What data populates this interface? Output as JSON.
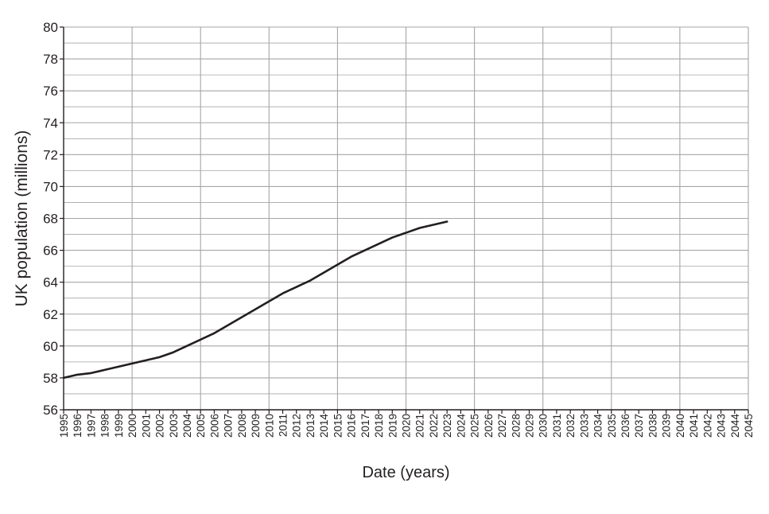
{
  "chart_data": {
    "type": "line",
    "title": "",
    "xlabel": "Date (years)",
    "ylabel": "UK population (millions)",
    "xlim": [
      1995,
      2045
    ],
    "ylim": [
      56,
      80
    ],
    "x_ticks": [
      1995,
      1996,
      1997,
      1998,
      1999,
      2000,
      2001,
      2002,
      2003,
      2004,
      2005,
      2006,
      2007,
      2008,
      2009,
      2010,
      2011,
      2012,
      2013,
      2014,
      2015,
      2016,
      2017,
      2018,
      2019,
      2020,
      2021,
      2022,
      2023,
      2024,
      2025,
      2026,
      2027,
      2028,
      2029,
      2030,
      2031,
      2032,
      2033,
      2034,
      2035,
      2036,
      2037,
      2038,
      2039,
      2040,
      2041,
      2042,
      2043,
      2044,
      2045
    ],
    "y_ticks": [
      56,
      58,
      60,
      62,
      64,
      66,
      68,
      70,
      72,
      74,
      76,
      78,
      80
    ],
    "grid": true,
    "series": [
      {
        "x": [
          1995,
          1996,
          1997,
          1998,
          1999,
          2000,
          2001,
          2002,
          2003,
          2004,
          2005,
          2006,
          2007,
          2008,
          2009,
          2010,
          2011,
          2012,
          2013,
          2014,
          2015,
          2016,
          2017,
          2018,
          2019,
          2020,
          2021,
          2022,
          2023
        ],
        "y": [
          58.0,
          58.2,
          58.3,
          58.5,
          58.7,
          58.9,
          59.1,
          59.3,
          59.6,
          60.0,
          60.4,
          60.8,
          61.3,
          61.8,
          62.3,
          62.8,
          63.3,
          63.7,
          64.1,
          64.6,
          65.1,
          65.6,
          66.0,
          66.4,
          66.8,
          67.1,
          67.4,
          67.6,
          67.8
        ]
      }
    ],
    "colors": {
      "line": "#231f20",
      "grid": "#a6a6a6",
      "axis": "#231f20"
    }
  }
}
